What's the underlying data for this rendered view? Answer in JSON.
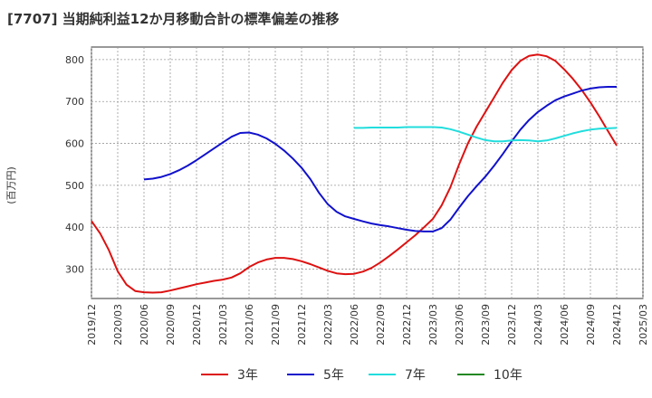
{
  "chart_data": {
    "type": "line",
    "title": "[7707]  当期純利益12か月移動合計の標準偏差の推移",
    "ylabel": "(百万円)",
    "xlabel": "",
    "ylim": [
      230,
      830
    ],
    "yticks": [
      300,
      400,
      500,
      600,
      700,
      800
    ],
    "x_ticks": [
      "2019/12",
      "2020/03",
      "2020/06",
      "2020/09",
      "2020/12",
      "2021/03",
      "2021/06",
      "2021/09",
      "2021/12",
      "2022/03",
      "2022/06",
      "2022/09",
      "2022/12",
      "2023/03",
      "2023/06",
      "2023/09",
      "2023/12",
      "2024/03",
      "2024/06",
      "2024/09",
      "2024/12",
      "2025/03"
    ],
    "grid": true,
    "legend_position": "bottom",
    "series": [
      {
        "name": "3年",
        "color": "#dd1111",
        "points": [
          [
            "2019/12",
            415
          ],
          [
            "2020/01",
            385
          ],
          [
            "2020/02",
            345
          ],
          [
            "2020/03",
            295
          ],
          [
            "2020/04",
            263
          ],
          [
            "2020/05",
            248
          ],
          [
            "2020/06",
            245
          ],
          [
            "2020/07",
            244
          ],
          [
            "2020/08",
            245
          ],
          [
            "2020/09",
            249
          ],
          [
            "2020/10",
            254
          ],
          [
            "2020/11",
            259
          ],
          [
            "2020/12",
            264
          ],
          [
            "2021/01",
            268
          ],
          [
            "2021/02",
            272
          ],
          [
            "2021/03",
            275
          ],
          [
            "2021/04",
            280
          ],
          [
            "2021/05",
            290
          ],
          [
            "2021/06",
            305
          ],
          [
            "2021/07",
            316
          ],
          [
            "2021/08",
            323
          ],
          [
            "2021/09",
            327
          ],
          [
            "2021/10",
            327
          ],
          [
            "2021/11",
            324
          ],
          [
            "2021/12",
            319
          ],
          [
            "2022/01",
            312
          ],
          [
            "2022/02",
            304
          ],
          [
            "2022/03",
            296
          ],
          [
            "2022/04",
            290
          ],
          [
            "2022/05",
            288
          ],
          [
            "2022/06",
            289
          ],
          [
            "2022/07",
            294
          ],
          [
            "2022/08",
            303
          ],
          [
            "2022/09",
            316
          ],
          [
            "2022/10",
            331
          ],
          [
            "2022/11",
            347
          ],
          [
            "2022/12",
            364
          ],
          [
            "2023/01",
            381
          ],
          [
            "2023/02",
            400
          ],
          [
            "2023/03",
            420
          ],
          [
            "2023/04",
            452
          ],
          [
            "2023/05",
            495
          ],
          [
            "2023/06",
            550
          ],
          [
            "2023/07",
            600
          ],
          [
            "2023/08",
            640
          ],
          [
            "2023/09",
            675
          ],
          [
            "2023/10",
            710
          ],
          [
            "2023/11",
            745
          ],
          [
            "2023/12",
            775
          ],
          [
            "2024/01",
            797
          ],
          [
            "2024/02",
            809
          ],
          [
            "2024/03",
            812
          ],
          [
            "2024/04",
            808
          ],
          [
            "2024/05",
            797
          ],
          [
            "2024/06",
            777
          ],
          [
            "2024/07",
            754
          ],
          [
            "2024/08",
            728
          ],
          [
            "2024/09",
            698
          ],
          [
            "2024/10",
            665
          ],
          [
            "2024/11",
            630
          ],
          [
            "2024/12",
            595
          ]
        ]
      },
      {
        "name": "5年",
        "color": "#1111cc",
        "points": [
          [
            "2020/06",
            514
          ],
          [
            "2020/07",
            516
          ],
          [
            "2020/08",
            520
          ],
          [
            "2020/09",
            527
          ],
          [
            "2020/10",
            536
          ],
          [
            "2020/11",
            547
          ],
          [
            "2020/12",
            560
          ],
          [
            "2021/01",
            574
          ],
          [
            "2021/02",
            588
          ],
          [
            "2021/03",
            602
          ],
          [
            "2021/04",
            616
          ],
          [
            "2021/05",
            625
          ],
          [
            "2021/06",
            626
          ],
          [
            "2021/07",
            621
          ],
          [
            "2021/08",
            612
          ],
          [
            "2021/09",
            599
          ],
          [
            "2021/10",
            583
          ],
          [
            "2021/11",
            564
          ],
          [
            "2021/12",
            542
          ],
          [
            "2022/01",
            515
          ],
          [
            "2022/02",
            482
          ],
          [
            "2022/03",
            455
          ],
          [
            "2022/04",
            437
          ],
          [
            "2022/05",
            426
          ],
          [
            "2022/06",
            420
          ],
          [
            "2022/07",
            414
          ],
          [
            "2022/08",
            409
          ],
          [
            "2022/09",
            405
          ],
          [
            "2022/10",
            402
          ],
          [
            "2022/11",
            398
          ],
          [
            "2022/12",
            394
          ],
          [
            "2023/01",
            391
          ],
          [
            "2023/02",
            390
          ],
          [
            "2023/03",
            390
          ],
          [
            "2023/04",
            398
          ],
          [
            "2023/05",
            418
          ],
          [
            "2023/06",
            447
          ],
          [
            "2023/07",
            474
          ],
          [
            "2023/08",
            498
          ],
          [
            "2023/09",
            521
          ],
          [
            "2023/10",
            547
          ],
          [
            "2023/11",
            575
          ],
          [
            "2023/12",
            605
          ],
          [
            "2024/01",
            633
          ],
          [
            "2024/02",
            656
          ],
          [
            "2024/03",
            675
          ],
          [
            "2024/04",
            690
          ],
          [
            "2024/05",
            703
          ],
          [
            "2024/06",
            712
          ],
          [
            "2024/07",
            719
          ],
          [
            "2024/08",
            726
          ],
          [
            "2024/09",
            731
          ],
          [
            "2024/10",
            734
          ],
          [
            "2024/11",
            735
          ],
          [
            "2024/12",
            735
          ]
        ]
      },
      {
        "name": "7年",
        "color": "#22dddd",
        "points": [
          [
            "2022/06",
            637
          ],
          [
            "2022/07",
            637
          ],
          [
            "2022/08",
            638
          ],
          [
            "2022/09",
            638
          ],
          [
            "2022/10",
            638
          ],
          [
            "2022/11",
            638
          ],
          [
            "2022/12",
            639
          ],
          [
            "2023/01",
            639
          ],
          [
            "2023/02",
            639
          ],
          [
            "2023/03",
            639
          ],
          [
            "2023/04",
            638
          ],
          [
            "2023/05",
            634
          ],
          [
            "2023/06",
            628
          ],
          [
            "2023/07",
            621
          ],
          [
            "2023/08",
            614
          ],
          [
            "2023/09",
            608
          ],
          [
            "2023/10",
            605
          ],
          [
            "2023/11",
            605
          ],
          [
            "2023/12",
            607
          ],
          [
            "2024/01",
            608
          ],
          [
            "2024/02",
            607
          ],
          [
            "2024/03",
            605
          ],
          [
            "2024/04",
            607
          ],
          [
            "2024/05",
            612
          ],
          [
            "2024/06",
            618
          ],
          [
            "2024/07",
            624
          ],
          [
            "2024/08",
            629
          ],
          [
            "2024/09",
            633
          ],
          [
            "2024/10",
            635
          ],
          [
            "2024/11",
            636
          ],
          [
            "2024/12",
            637
          ]
        ]
      },
      {
        "name": "10年",
        "color": "#228822",
        "points": []
      }
    ]
  }
}
